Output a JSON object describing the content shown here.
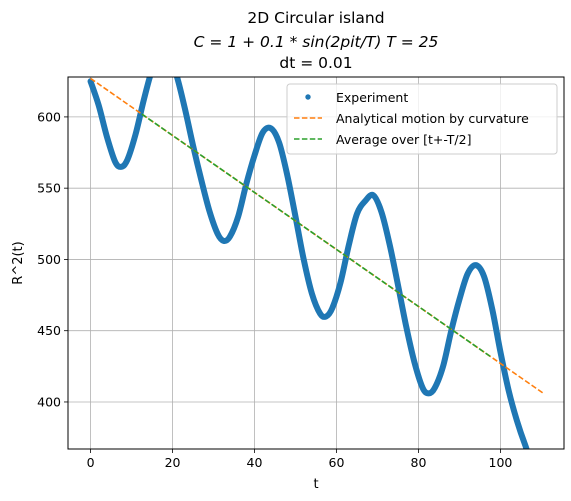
{
  "chart_data": {
    "type": "line",
    "title_lines": [
      "2D Circular island",
      "C = 1 + 0.1 * sin(2pit/T) T = 25",
      "dt = 0.01"
    ],
    "xlabel": "t",
    "ylabel": "R^2(t)",
    "xlim": [
      -5.5,
      115.5
    ],
    "ylim": [
      367,
      628
    ],
    "xticks": [
      0,
      20,
      40,
      60,
      80,
      100
    ],
    "yticks": [
      400,
      450,
      500,
      550,
      600
    ],
    "grid": true,
    "legend_position": "top-right",
    "series": [
      {
        "name": "Experiment",
        "style": "dots",
        "color": "#1f77b4",
        "x": [
          0,
          2,
          4,
          6,
          7.5,
          9,
          11,
          13,
          15,
          17,
          19,
          21,
          23,
          25,
          27,
          29,
          31,
          32.5,
          34,
          36,
          38,
          40,
          42,
          44,
          46,
          48,
          50,
          52,
          54,
          56,
          57.5,
          59,
          61,
          63,
          65,
          67,
          69,
          71,
          73,
          75,
          77,
          79,
          81,
          82.5,
          84,
          86,
          88,
          90,
          92,
          94,
          96,
          98,
          100,
          102,
          104,
          106,
          108,
          110.5
        ],
        "y": [
          625,
          608,
          586,
          568.5,
          565,
          570,
          588,
          612,
          633,
          645,
          644,
          629,
          606,
          580,
          556,
          534,
          518,
          513,
          516,
          530,
          553,
          573,
          589,
          592,
          582,
          559,
          530,
          500,
          476,
          462,
          460,
          466,
          484,
          510,
          532,
          541,
          545,
          533,
          510,
          482,
          453,
          428,
          410,
          406,
          410,
          425,
          450,
          472,
          490,
          496,
          488,
          465,
          435,
          408,
          387,
          370,
          356,
          365
        ]
      },
      {
        "name": "Analytical motion by curvature",
        "style": "dashed",
        "color": "#ff7f0e",
        "x": [
          0,
          110.5
        ],
        "y": [
          627,
          406
        ]
      },
      {
        "name": "Average over [t+-T/2]",
        "style": "dashed",
        "color": "#2ca02c",
        "x": [
          12.5,
          97.5
        ],
        "y": [
          602,
          432
        ]
      }
    ]
  }
}
